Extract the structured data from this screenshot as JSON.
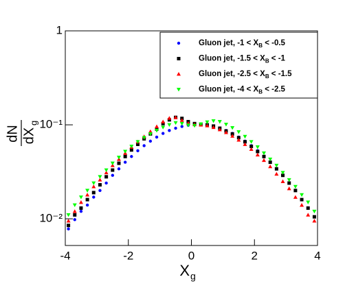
{
  "chart_data": {
    "type": "scatter",
    "log_y": true,
    "xlabel": "X",
    "xlabel_sub": "g",
    "ylabel_numerator": "dN",
    "ylabel_denominator": "dX",
    "ylabel_sub": "g",
    "xlim": [
      -4,
      4
    ],
    "xticks": [
      -4,
      -2,
      0,
      2,
      4
    ],
    "ylim": [
      0.0052,
      1
    ],
    "yticks": [
      {
        "value": 0.01,
        "label": "10⁻²"
      },
      {
        "value": 0.1,
        "label": "10⁻¹"
      },
      {
        "value": 1,
        "label": "1"
      }
    ],
    "legend": "upper right",
    "x": [
      -3.9,
      -3.7,
      -3.5,
      -3.3,
      -3.1,
      -2.9,
      -2.7,
      -2.5,
      -2.3,
      -2.1,
      -1.9,
      -1.7,
      -1.5,
      -1.3,
      -1.1,
      -0.9,
      -0.7,
      -0.5,
      -0.3,
      -0.1,
      0.1,
      0.3,
      0.5,
      0.7,
      0.9,
      1.1,
      1.3,
      1.5,
      1.7,
      1.9,
      2.1,
      2.3,
      2.5,
      2.7,
      2.9,
      3.1,
      3.3,
      3.5,
      3.7,
      3.9
    ],
    "series": [
      {
        "name": "Gluon jet, -1 < XB < -0.5",
        "color": "#0000ff",
        "marker": "circle",
        "values": [
          0.0078,
          0.0098,
          0.012,
          0.014,
          0.017,
          0.02,
          0.024,
          0.029,
          0.034,
          0.04,
          0.046,
          0.053,
          0.06,
          0.067,
          0.074,
          0.081,
          0.087,
          0.092,
          0.096,
          0.099,
          0.1,
          0.1,
          0.099,
          0.096,
          0.092,
          0.087,
          0.081,
          0.074,
          0.067,
          0.06,
          0.053,
          0.046,
          0.04,
          0.034,
          0.029,
          0.024,
          0.02,
          0.016,
          0.013,
          0.0105
        ]
      },
      {
        "name": "Gluon jet, -1.5 < XB < -1",
        "color": "#000000",
        "marker": "square",
        "values": [
          0.0085,
          0.011,
          0.013,
          0.016,
          0.019,
          0.023,
          0.028,
          0.033,
          0.039,
          0.046,
          0.054,
          0.062,
          0.071,
          0.08,
          0.09,
          0.103,
          0.113,
          0.12,
          0.117,
          0.108,
          0.103,
          0.101,
          0.1,
          0.097,
          0.092,
          0.086,
          0.08,
          0.073,
          0.066,
          0.059,
          0.052,
          0.046,
          0.04,
          0.034,
          0.029,
          0.024,
          0.02,
          0.016,
          0.013,
          0.0105
        ]
      },
      {
        "name": "Gluon jet, -2.5 < XB < -1.5",
        "color": "#ff0000",
        "marker": "triangle-up",
        "values": [
          0.0095,
          0.012,
          0.015,
          0.018,
          0.022,
          0.026,
          0.031,
          0.037,
          0.043,
          0.05,
          0.058,
          0.066,
          0.075,
          0.085,
          0.096,
          0.108,
          0.118,
          0.12,
          0.112,
          0.104,
          0.101,
          0.1,
          0.098,
          0.094,
          0.089,
          0.083,
          0.076,
          0.069,
          0.062,
          0.055,
          0.048,
          0.042,
          0.036,
          0.03,
          0.025,
          0.021,
          0.017,
          0.014,
          0.011,
          0.0095
        ]
      },
      {
        "name": "Gluon jet, -4 < XB < -2.5",
        "color": "#00ff00",
        "marker": "triangle-down",
        "values": [
          0.011,
          0.014,
          0.017,
          0.02,
          0.024,
          0.028,
          0.033,
          0.039,
          0.045,
          0.052,
          0.059,
          0.066,
          0.073,
          0.08,
          0.087,
          0.094,
          0.1,
          0.105,
          0.103,
          0.099,
          0.098,
          0.102,
          0.107,
          0.11,
          0.108,
          0.101,
          0.093,
          0.084,
          0.075,
          0.066,
          0.058,
          0.05,
          0.043,
          0.037,
          0.031,
          0.026,
          0.022,
          0.018,
          0.015,
          0.012
        ]
      }
    ]
  }
}
